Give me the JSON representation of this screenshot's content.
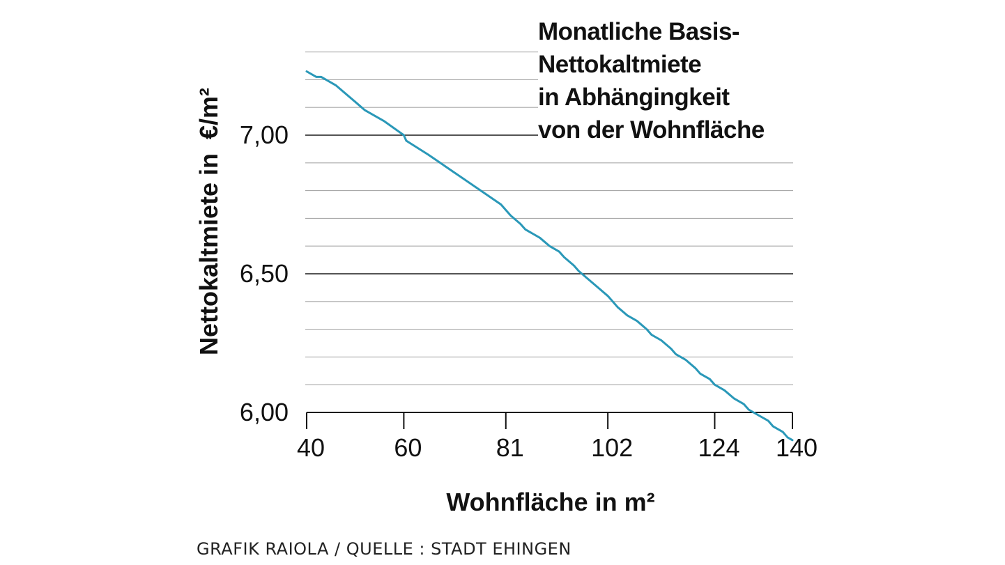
{
  "chart_data": {
    "type": "line",
    "title_lines": [
      "Monatliche Basis-",
      "Nettokaltmiete",
      "in Abhängingkeit",
      "von der Wohnfläche"
    ],
    "xlabel": "Wohnfläche in m²",
    "ylabel": "Nettokaltmiete in  €/m²",
    "x_ticks": [
      {
        "value": 40,
        "label": "40"
      },
      {
        "value": 60,
        "label": "60"
      },
      {
        "value": 81,
        "label": "81"
      },
      {
        "value": 102,
        "label": "102"
      },
      {
        "value": 124,
        "label": "124"
      },
      {
        "value": 140,
        "label": "140"
      }
    ],
    "y_ticks": [
      {
        "value": 6.0,
        "label": "6,00"
      },
      {
        "value": 6.5,
        "label": "6,50"
      },
      {
        "value": 7.0,
        "label": "7,00"
      }
    ],
    "xlim": [
      40,
      140
    ],
    "ylim": [
      6.0,
      7.3
    ],
    "grid": true,
    "grid_step": 0.1,
    "line_color": "#2a98b8",
    "series": [
      {
        "x": [
          40,
          42,
          43,
          46,
          50,
          52,
          56,
          60,
          60.5,
          65,
          70,
          75,
          80,
          81,
          82,
          84,
          85,
          88,
          90,
          92,
          93,
          95,
          96,
          98,
          100,
          102,
          103,
          104,
          106,
          108,
          110,
          111,
          113,
          115,
          116,
          118,
          120,
          121,
          123,
          124,
          126,
          128,
          130,
          131,
          133,
          135,
          136,
          138,
          139,
          140
        ],
        "y": [
          7.23,
          7.21,
          7.21,
          7.18,
          7.12,
          7.09,
          7.05,
          7.0,
          6.98,
          6.93,
          6.87,
          6.81,
          6.75,
          6.73,
          6.71,
          6.68,
          6.66,
          6.63,
          6.6,
          6.58,
          6.56,
          6.53,
          6.51,
          6.48,
          6.45,
          6.42,
          6.4,
          6.38,
          6.35,
          6.33,
          6.3,
          6.28,
          6.26,
          6.23,
          6.21,
          6.19,
          6.16,
          6.14,
          6.12,
          6.1,
          6.08,
          6.05,
          6.03,
          6.01,
          5.99,
          5.97,
          5.95,
          5.93,
          5.91,
          5.9
        ]
      }
    ]
  },
  "footer": {
    "source": "GRAFIK RAIOLA / QUELLE : STADT EHINGEN"
  }
}
